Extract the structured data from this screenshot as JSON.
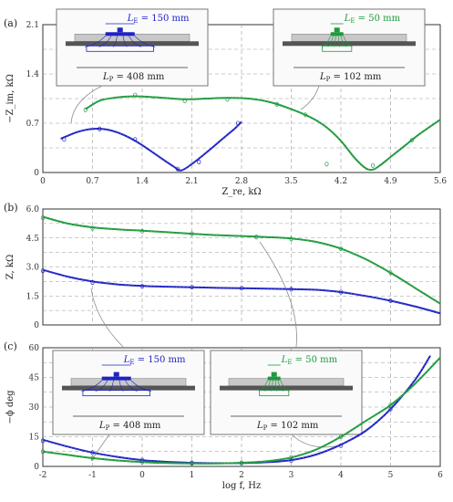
{
  "colors": {
    "blue": "#1f23c4",
    "green": "#1d9a3c",
    "grid": "#9a9a9a",
    "gray_line": "#8c8c8c"
  },
  "chart_data": [
    {
      "panel": "(a)",
      "type": "line",
      "xlabel": "Z_re, kΩ",
      "ylabel": "−Z_im, kΩ",
      "xlim": [
        0,
        5.6
      ],
      "ylim": [
        0,
        2.1
      ],
      "xticks": [
        "0",
        "0.7",
        "1.4",
        "2.1",
        "2.8",
        "3.5",
        "4.2",
        "4.9",
        "5.6"
      ],
      "yticks": [
        "0",
        "0.7",
        "1.4",
        "2.1"
      ],
      "series": [
        {
          "color": "blue",
          "x": [
            0.25,
            0.5,
            0.7,
            0.9,
            1.1,
            1.3,
            1.5,
            1.7,
            1.85,
            1.95,
            2.1,
            2.3,
            2.5,
            2.7,
            2.8
          ],
          "y": [
            0.48,
            0.58,
            0.62,
            0.61,
            0.55,
            0.45,
            0.32,
            0.18,
            0.08,
            0.03,
            0.12,
            0.28,
            0.45,
            0.62,
            0.72
          ]
        },
        {
          "color": "green",
          "x": [
            0.6,
            0.8,
            1.0,
            1.2,
            1.4,
            1.7,
            2.0,
            2.3,
            2.6,
            2.9,
            3.2,
            3.5,
            3.8,
            4.0,
            4.2,
            4.4,
            4.55,
            4.65,
            4.75,
            4.9,
            5.1,
            5.3,
            5.6
          ],
          "y": [
            0.9,
            1.02,
            1.06,
            1.08,
            1.08,
            1.06,
            1.04,
            1.05,
            1.06,
            1.05,
            1.0,
            0.9,
            0.77,
            0.64,
            0.45,
            0.2,
            0.06,
            0.04,
            0.1,
            0.22,
            0.38,
            0.54,
            0.75
          ]
        }
      ],
      "scatter": [
        {
          "color": "blue",
          "x": [
            0.3,
            0.8,
            1.3,
            1.9,
            2.2,
            2.75
          ],
          "y": [
            0.47,
            0.62,
            0.47,
            0.05,
            0.15,
            0.7
          ]
        },
        {
          "color": "green",
          "x": [
            0.6,
            1.3,
            2.0,
            2.6,
            3.3,
            3.7,
            4.0,
            4.65,
            5.2
          ],
          "y": [
            0.89,
            1.1,
            1.02,
            1.04,
            0.97,
            0.82,
            0.12,
            0.1,
            0.46
          ]
        }
      ],
      "insets": [
        {
          "color": "blue",
          "le": "L_E = 150 mm",
          "lp": "L_P = 408 mm"
        },
        {
          "color": "green",
          "le": "L_E = 50 mm",
          "lp": "L_P = 102 mm"
        }
      ]
    },
    {
      "panel": "(b)",
      "type": "line",
      "xlabel": "",
      "ylabel": "Z, kΩ",
      "xlim": [
        -2,
        6
      ],
      "ylim": [
        0,
        6.0
      ],
      "yticks": [
        "0",
        "1.5",
        "3.0",
        "4.5",
        "6.0"
      ],
      "series": [
        {
          "color": "green",
          "x": [
            -2,
            -1.5,
            -1,
            -0.5,
            0,
            0.5,
            1,
            1.5,
            2,
            2.5,
            3,
            3.5,
            4,
            4.5,
            5,
            5.5,
            6
          ],
          "y": [
            5.6,
            5.25,
            5.05,
            4.95,
            4.88,
            4.8,
            4.72,
            4.65,
            4.6,
            4.55,
            4.48,
            4.3,
            3.95,
            3.4,
            2.7,
            1.9,
            1.1
          ]
        },
        {
          "color": "blue",
          "x": [
            -2,
            -1.5,
            -1,
            -0.5,
            0,
            0.5,
            1,
            1.5,
            2,
            2.5,
            3,
            3.5,
            4,
            4.5,
            5,
            5.5,
            6
          ],
          "y": [
            2.85,
            2.5,
            2.25,
            2.1,
            2.02,
            1.98,
            1.95,
            1.92,
            1.9,
            1.88,
            1.85,
            1.82,
            1.7,
            1.5,
            1.25,
            0.95,
            0.6
          ]
        }
      ],
      "scatter": [
        {
          "color": "green",
          "x": [
            -2,
            -1,
            0,
            1,
            2.3,
            3,
            4,
            5
          ],
          "y": [
            5.55,
            5.0,
            4.85,
            4.72,
            4.55,
            4.45,
            3.95,
            2.7
          ]
        },
        {
          "color": "blue",
          "x": [
            -2,
            -1,
            0,
            1,
            2,
            3,
            4,
            5
          ],
          "y": [
            2.8,
            2.2,
            2.0,
            1.96,
            1.9,
            1.85,
            1.7,
            1.25
          ]
        }
      ]
    },
    {
      "panel": "(c)",
      "type": "line",
      "xlabel": "log f, Hz",
      "ylabel": "−ϕ deg",
      "xlim": [
        -2,
        6
      ],
      "ylim": [
        0,
        60
      ],
      "xticks": [
        "-2",
        "-1",
        "0",
        "1",
        "2",
        "3",
        "4",
        "5",
        "6"
      ],
      "yticks": [
        "0",
        "15",
        "30",
        "45",
        "60"
      ],
      "series": [
        {
          "color": "blue",
          "x": [
            -2,
            -1.5,
            -1,
            -0.5,
            0,
            0.5,
            1,
            1.5,
            2,
            2.5,
            3,
            3.5,
            4,
            4.5,
            5,
            5.5,
            5.8
          ],
          "y": [
            13.5,
            10,
            7,
            4.8,
            3.2,
            2.3,
            1.8,
            1.6,
            1.7,
            2.1,
            3.2,
            6,
            11,
            18,
            29,
            44,
            56
          ]
        },
        {
          "color": "green",
          "x": [
            -2,
            -1.5,
            -1,
            -0.5,
            0,
            0.5,
            1,
            1.5,
            2,
            2.5,
            3,
            3.5,
            4,
            4.5,
            5,
            5.5,
            6
          ],
          "y": [
            7.5,
            5.8,
            4.2,
            3.0,
            2.2,
            1.7,
            1.5,
            1.5,
            1.8,
            2.6,
            4.5,
            8.5,
            15,
            23,
            31,
            42,
            55
          ]
        }
      ],
      "scatter": [
        {
          "color": "blue",
          "x": [
            -2,
            -1,
            0,
            1,
            2,
            3,
            4,
            5
          ],
          "y": [
            13,
            7,
            3.2,
            1.8,
            1.7,
            3,
            10.5,
            29
          ]
        },
        {
          "color": "green",
          "x": [
            -2,
            -1,
            0,
            1,
            2,
            3,
            4,
            5
          ],
          "y": [
            7.5,
            4.2,
            2.2,
            1.5,
            1.8,
            4.6,
            15,
            31
          ]
        }
      ],
      "insets": [
        {
          "color": "blue",
          "le": "L_E = 150 mm",
          "lp": "L_P = 408 mm"
        },
        {
          "color": "green",
          "le": "L_E = 50 mm",
          "lp": "L_P = 102 mm"
        }
      ]
    }
  ]
}
